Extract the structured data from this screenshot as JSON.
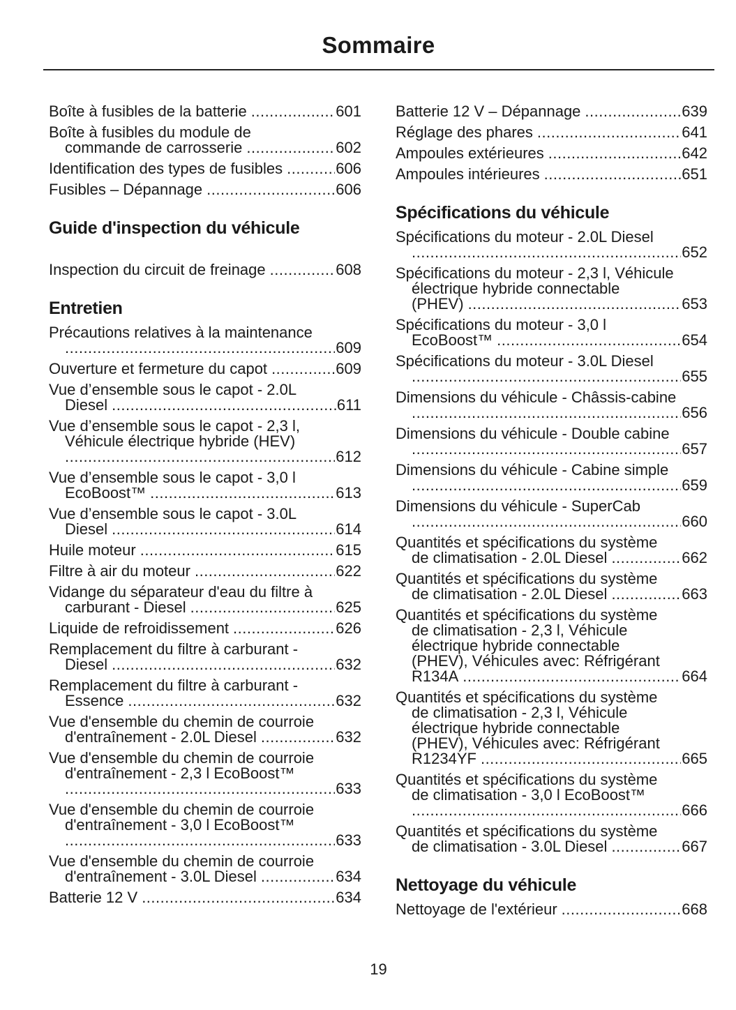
{
  "title": "Sommaire",
  "page_number": "19",
  "columns": [
    {
      "items": [
        {
          "type": "entry",
          "lines": [
            "Boîte à fusibles de la batterie"
          ],
          "page": "601"
        },
        {
          "type": "entry",
          "lines": [
            "Boîte à fusibles du module de",
            "commande de carrosserie"
          ],
          "page": "602"
        },
        {
          "type": "entry",
          "lines": [
            "Identification des types de fusibles"
          ],
          "page": "606"
        },
        {
          "type": "entry",
          "lines": [
            "Fusibles – Dépannage"
          ],
          "page": "606"
        },
        {
          "type": "heading",
          "text": "Guide d'inspection du véhicule",
          "tall": true
        },
        {
          "type": "entry",
          "lines": [
            "Inspection du circuit de freinage"
          ],
          "page": "608"
        },
        {
          "type": "heading",
          "text": "Entretien"
        },
        {
          "type": "entry",
          "lines": [
            "Précautions relatives à la maintenance",
            ""
          ],
          "page": "609"
        },
        {
          "type": "entry",
          "lines": [
            "Ouverture et fermeture du capot"
          ],
          "page": "609"
        },
        {
          "type": "entry",
          "lines": [
            "Vue d’ensemble sous le capot - 2.0L",
            "Diesel"
          ],
          "page": "611"
        },
        {
          "type": "entry",
          "lines": [
            "Vue d’ensemble sous le capot - 2,3 l,",
            "Véhicule électrique hybride (HEV)",
            ""
          ],
          "page": "612"
        },
        {
          "type": "entry",
          "lines": [
            "Vue d’ensemble sous le capot - 3,0 l",
            "EcoBoost™"
          ],
          "page": "613"
        },
        {
          "type": "entry",
          "lines": [
            "Vue d’ensemble sous le capot - 3.0L",
            "Diesel"
          ],
          "page": "614"
        },
        {
          "type": "entry",
          "lines": [
            "Huile moteur"
          ],
          "page": "615"
        },
        {
          "type": "entry",
          "lines": [
            "Filtre à air du moteur"
          ],
          "page": "622"
        },
        {
          "type": "entry",
          "lines": [
            "Vidange du séparateur d'eau du filtre à",
            "carburant - Diesel"
          ],
          "page": "625"
        },
        {
          "type": "entry",
          "lines": [
            "Liquide de refroidissement"
          ],
          "page": "626"
        },
        {
          "type": "entry",
          "lines": [
            "Remplacement du filtre à carburant -",
            "Diesel"
          ],
          "page": "632"
        },
        {
          "type": "entry",
          "lines": [
            "Remplacement du filtre à carburant -",
            "Essence"
          ],
          "page": "632"
        },
        {
          "type": "entry",
          "lines": [
            "Vue d'ensemble du chemin de courroie",
            "d'entraînement - 2.0L Diesel"
          ],
          "page": "632"
        },
        {
          "type": "entry",
          "lines": [
            "Vue d'ensemble du chemin de courroie",
            "d'entraînement - 2,3 l EcoBoost™",
            ""
          ],
          "page": "633"
        },
        {
          "type": "entry",
          "lines": [
            "Vue d'ensemble du chemin de courroie",
            "d'entraînement - 3,0 l EcoBoost™",
            ""
          ],
          "page": "633"
        },
        {
          "type": "entry",
          "lines": [
            "Vue d'ensemble du chemin de courroie",
            "d'entraînement - 3.0L Diesel"
          ],
          "page": "634"
        },
        {
          "type": "entry",
          "lines": [
            "Batterie 12 V"
          ],
          "page": "634"
        }
      ]
    },
    {
      "items": [
        {
          "type": "entry",
          "lines": [
            "Batterie 12 V – Dépannage"
          ],
          "page": "639"
        },
        {
          "type": "entry",
          "lines": [
            "Réglage des phares"
          ],
          "page": "641"
        },
        {
          "type": "entry",
          "lines": [
            "Ampoules extérieures"
          ],
          "page": "642"
        },
        {
          "type": "entry",
          "lines": [
            "Ampoules intérieures"
          ],
          "page": "651"
        },
        {
          "type": "heading",
          "text": "Spécifications du véhicule"
        },
        {
          "type": "entry",
          "lines": [
            "Spécifications du moteur - 2.0L Diesel",
            ""
          ],
          "page": "652"
        },
        {
          "type": "entry",
          "lines": [
            "Spécifications du moteur - 2,3 l, Véhicule",
            "électrique hybride connectable",
            "(PHEV)"
          ],
          "page": "653"
        },
        {
          "type": "entry",
          "lines": [
            "Spécifications du moteur - 3,0 l",
            "EcoBoost™"
          ],
          "page": "654"
        },
        {
          "type": "entry",
          "lines": [
            "Spécifications du moteur - 3.0L Diesel",
            ""
          ],
          "page": "655"
        },
        {
          "type": "entry",
          "lines": [
            "Dimensions du véhicule - Châssis-cabine",
            ""
          ],
          "page": "656"
        },
        {
          "type": "entry",
          "lines": [
            "Dimensions du véhicule - Double cabine",
            ""
          ],
          "page": "657"
        },
        {
          "type": "entry",
          "lines": [
            "Dimensions du véhicule - Cabine simple",
            ""
          ],
          "page": "659"
        },
        {
          "type": "entry",
          "lines": [
            "Dimensions du véhicule - SuperCab",
            ""
          ],
          "page": "660"
        },
        {
          "type": "entry",
          "lines": [
            "Quantités et spécifications du système",
            "de climatisation - 2.0L Diesel"
          ],
          "page": "662"
        },
        {
          "type": "entry",
          "lines": [
            "Quantités et spécifications du système",
            "de climatisation - 2.0L Diesel"
          ],
          "page": "663"
        },
        {
          "type": "entry",
          "lines": [
            "Quantités et spécifications du système",
            "de climatisation - 2,3 l, Véhicule",
            "électrique hybride connectable",
            "(PHEV), Véhicules avec: Réfrigérant",
            "R134A"
          ],
          "page": "664"
        },
        {
          "type": "entry",
          "lines": [
            "Quantités et spécifications du système",
            "de climatisation - 2,3 l, Véhicule",
            "électrique hybride connectable",
            "(PHEV), Véhicules avec: Réfrigérant",
            "R1234YF"
          ],
          "page": "665"
        },
        {
          "type": "entry",
          "lines": [
            "Quantités et spécifications du système",
            "de climatisation - 3,0 l EcoBoost™",
            ""
          ],
          "page": "666"
        },
        {
          "type": "entry",
          "lines": [
            "Quantités et spécifications du système",
            "de climatisation - 3.0L Diesel"
          ],
          "page": "667"
        },
        {
          "type": "heading",
          "text": "Nettoyage du véhicule"
        },
        {
          "type": "entry",
          "lines": [
            "Nettoyage de l'extérieur"
          ],
          "page": "668"
        }
      ]
    }
  ]
}
